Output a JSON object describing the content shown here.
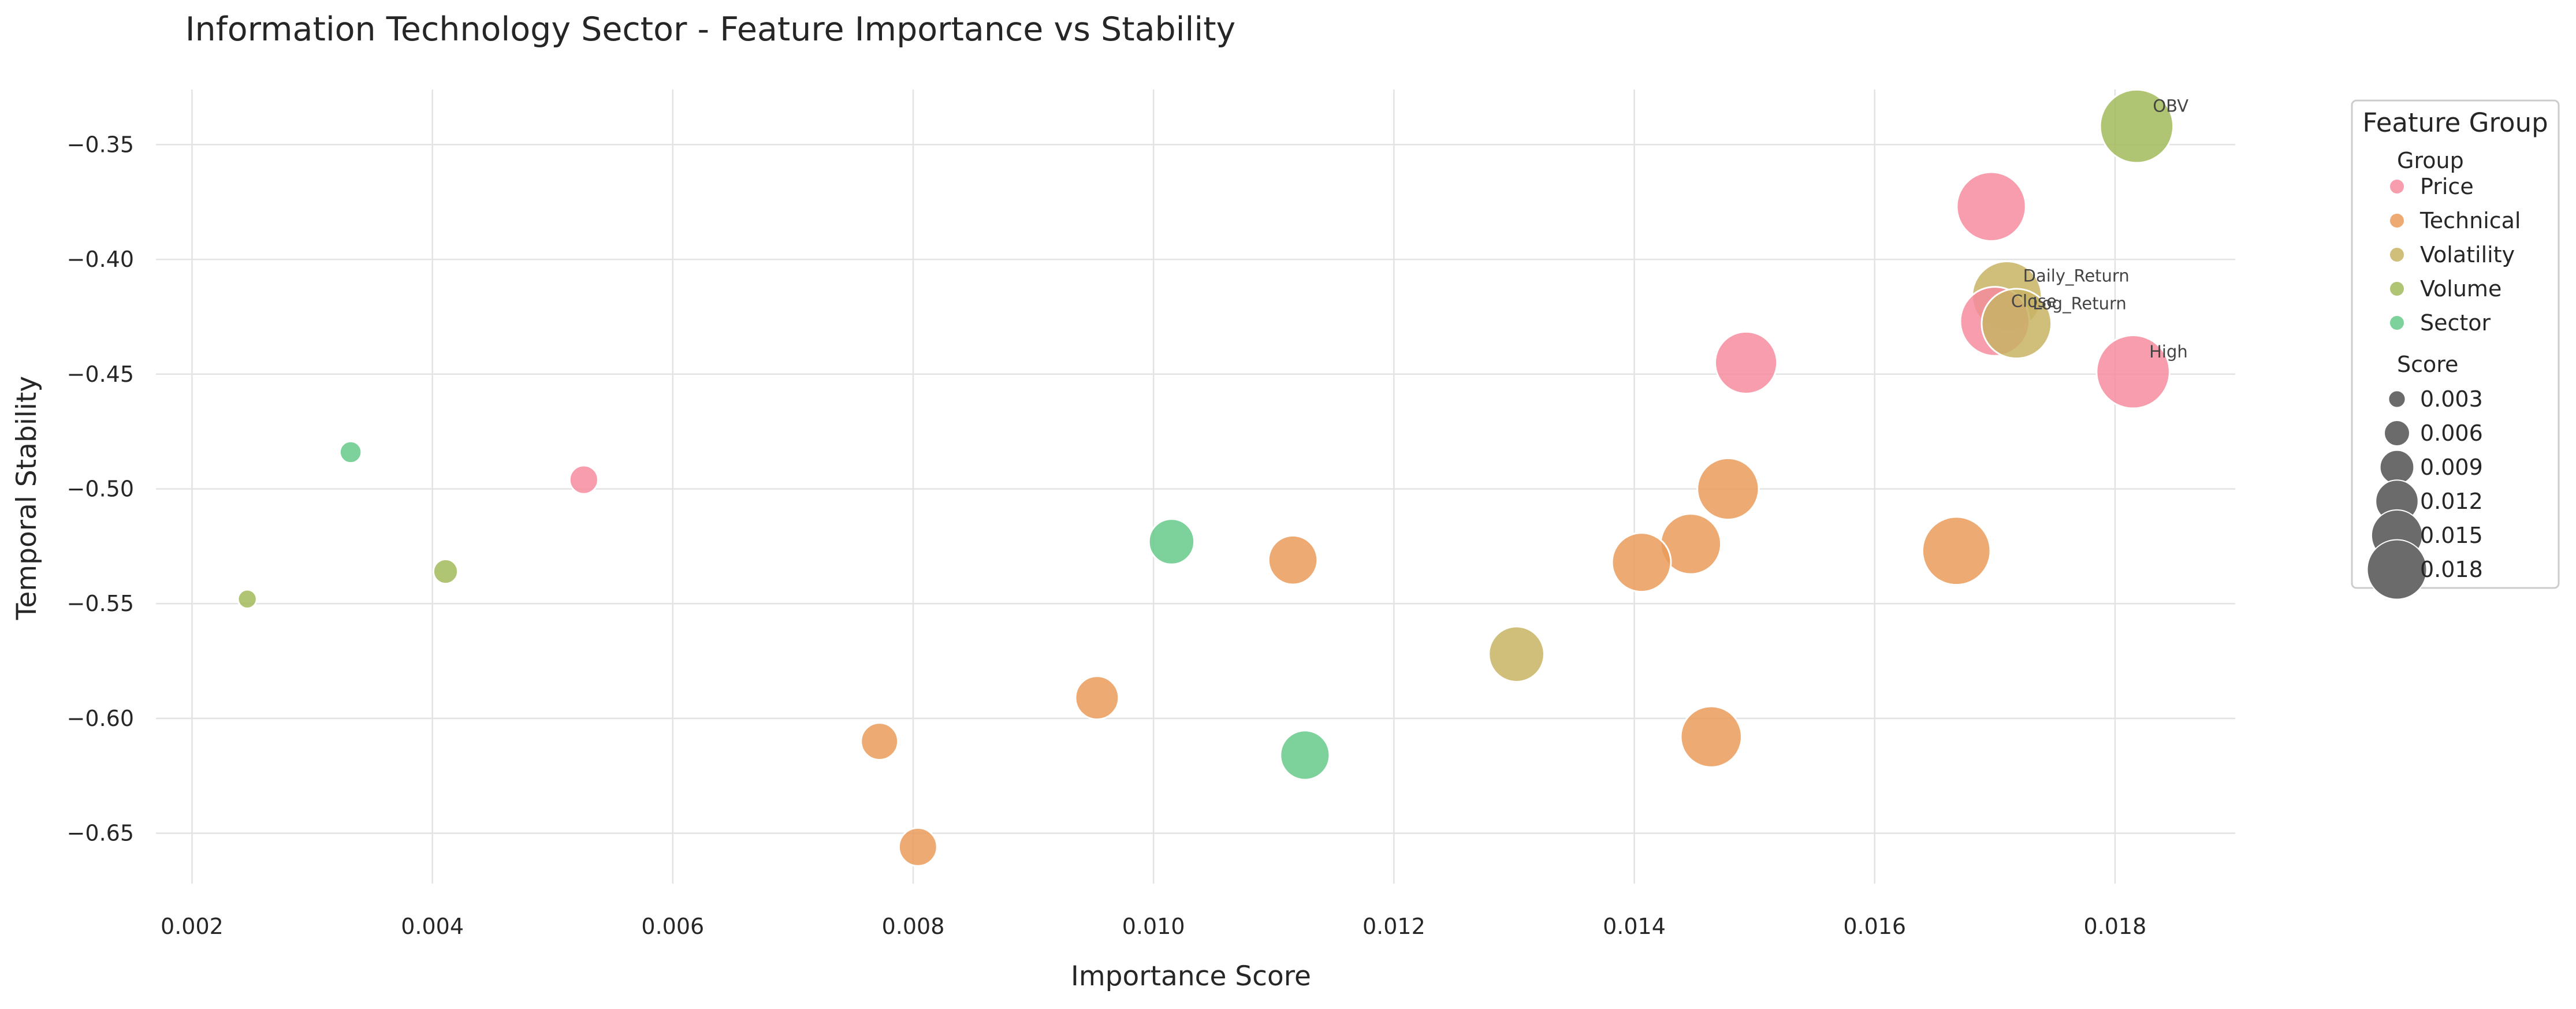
{
  "chart_data": {
    "type": "scatter",
    "title": "Information Technology Sector - Feature Importance vs Stability",
    "xlabel": "Importance Score",
    "ylabel": "Temporal Stability",
    "xlim": [
      0.0017,
      0.019
    ],
    "ylim": [
      -0.672,
      -0.326
    ],
    "x_ticks": [
      {
        "value": 0.002,
        "label": "0.002"
      },
      {
        "value": 0.004,
        "label": "0.004"
      },
      {
        "value": 0.006,
        "label": "0.006"
      },
      {
        "value": 0.008,
        "label": "0.008"
      },
      {
        "value": 0.01,
        "label": "0.010"
      },
      {
        "value": 0.012,
        "label": "0.012"
      },
      {
        "value": 0.014,
        "label": "0.014"
      },
      {
        "value": 0.016,
        "label": "0.016"
      },
      {
        "value": 0.018,
        "label": "0.018"
      }
    ],
    "y_ticks": [
      {
        "value": -0.35,
        "label": "−0.35"
      },
      {
        "value": -0.4,
        "label": "−0.40"
      },
      {
        "value": -0.45,
        "label": "−0.45"
      },
      {
        "value": -0.5,
        "label": "−0.50"
      },
      {
        "value": -0.55,
        "label": "−0.55"
      },
      {
        "value": -0.6,
        "label": "−0.60"
      },
      {
        "value": -0.65,
        "label": "−0.65"
      }
    ],
    "grid": true,
    "legend": {
      "title": "Feature Group",
      "placement": "outside-top-right",
      "hue_heading": "Group",
      "size_heading": "Score",
      "groups": [
        {
          "name": "Price",
          "color": "#f68c9f"
        },
        {
          "name": "Technical",
          "color": "#ea9b5a"
        },
        {
          "name": "Volatility",
          "color": "#c8b364"
        },
        {
          "name": "Volume",
          "color": "#a1bb5c"
        },
        {
          "name": "Sector",
          "color": "#66c98a"
        }
      ],
      "sizes": [
        {
          "value": 0.003,
          "label": "0.003"
        },
        {
          "value": 0.006,
          "label": "0.006"
        },
        {
          "value": 0.009,
          "label": "0.009"
        },
        {
          "value": 0.012,
          "label": "0.012"
        },
        {
          "value": 0.015,
          "label": "0.015"
        },
        {
          "value": 0.018,
          "label": "0.018"
        }
      ]
    },
    "points": [
      {
        "group": "Volume",
        "x": 0.01818,
        "y": -0.342,
        "label": "OBV"
      },
      {
        "group": "Price",
        "x": 0.01697,
        "y": -0.377,
        "label": ""
      },
      {
        "group": "Volatility",
        "x": 0.0171,
        "y": -0.416,
        "label": "Daily_Return"
      },
      {
        "group": "Price",
        "x": 0.017,
        "y": -0.427,
        "label": "Close"
      },
      {
        "group": "Volatility",
        "x": 0.01718,
        "y": -0.428,
        "label": "Log_Return"
      },
      {
        "group": "Price",
        "x": 0.01815,
        "y": -0.449,
        "label": "High"
      },
      {
        "group": "Price",
        "x": 0.01493,
        "y": -0.445,
        "label": ""
      },
      {
        "group": "Technical",
        "x": 0.01478,
        "y": -0.5,
        "label": ""
      },
      {
        "group": "Technical",
        "x": 0.01447,
        "y": -0.524,
        "label": ""
      },
      {
        "group": "Technical",
        "x": 0.01406,
        "y": -0.532,
        "label": ""
      },
      {
        "group": "Technical",
        "x": 0.01668,
        "y": -0.527,
        "label": ""
      },
      {
        "group": "Technical",
        "x": 0.01116,
        "y": -0.531,
        "label": ""
      },
      {
        "group": "Sector",
        "x": 0.01015,
        "y": -0.523,
        "label": ""
      },
      {
        "group": "Volatility",
        "x": 0.01302,
        "y": -0.572,
        "label": ""
      },
      {
        "group": "Technical",
        "x": 0.00953,
        "y": -0.591,
        "label": ""
      },
      {
        "group": "Technical",
        "x": 0.00772,
        "y": -0.61,
        "label": ""
      },
      {
        "group": "Technical",
        "x": 0.01464,
        "y": -0.608,
        "label": ""
      },
      {
        "group": "Sector",
        "x": 0.01126,
        "y": -0.616,
        "label": ""
      },
      {
        "group": "Technical",
        "x": 0.00804,
        "y": -0.656,
        "label": ""
      },
      {
        "group": "Price",
        "x": 0.00526,
        "y": -0.496,
        "label": ""
      },
      {
        "group": "Sector",
        "x": 0.00332,
        "y": -0.484,
        "label": ""
      },
      {
        "group": "Volume",
        "x": 0.00411,
        "y": -0.536,
        "label": ""
      },
      {
        "group": "Volume",
        "x": 0.00246,
        "y": -0.548,
        "label": ""
      }
    ]
  }
}
